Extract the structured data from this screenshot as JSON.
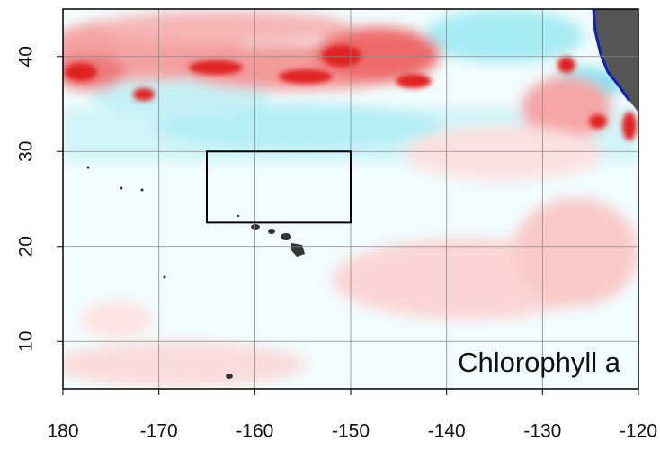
{
  "chart_data": {
    "type": "map",
    "label": "Chlorophyll a",
    "xlim": [
      -180,
      -120
    ],
    "xticks": [
      {
        "value": -180,
        "label": "180"
      },
      -170,
      -160,
      -150,
      -140,
      -130,
      -120
    ],
    "ylim": [
      5,
      45
    ],
    "yticks": [
      10,
      20,
      30,
      40
    ],
    "grid": true,
    "region": {
      "lon": [
        -165,
        -150
      ],
      "lat": [
        22.5,
        30
      ]
    }
  }
}
